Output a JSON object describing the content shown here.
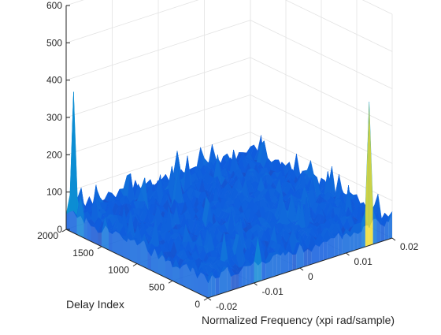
{
  "chart_data": {
    "type": "surface",
    "title": "",
    "xlabel": "Normalized Frequency (xpi rad/sample)",
    "ylabel": "Delay Index",
    "zlabel": "",
    "xlim": [
      -0.02,
      0.02
    ],
    "ylim": [
      0,
      2000
    ],
    "zlim": [
      0,
      600
    ],
    "x_ticks": [
      "-0.02",
      "-0.01",
      "0",
      "0.01",
      "0.02"
    ],
    "y_ticks": [
      "0",
      "500",
      "1000",
      "1500",
      "2000"
    ],
    "z_ticks": [
      "0",
      "100",
      "200",
      "300",
      "400",
      "500",
      "600"
    ],
    "grid": true,
    "colormap": "parula",
    "floor_level": 50,
    "peaks": [
      {
        "x": -0.0195,
        "y": 1960,
        "z": 370
      },
      {
        "x": 0.015,
        "y": 20,
        "z": 385
      }
    ]
  }
}
